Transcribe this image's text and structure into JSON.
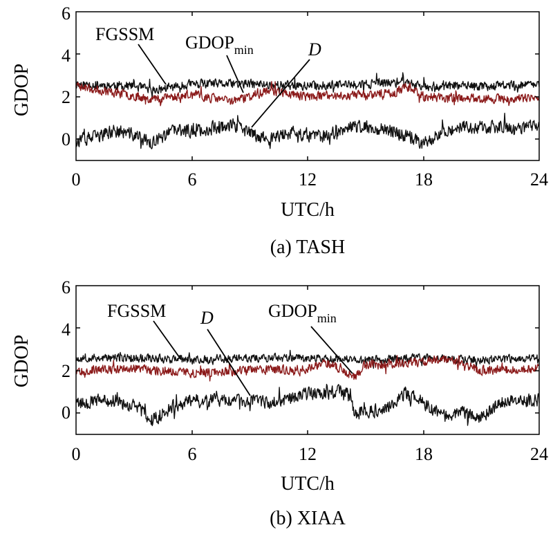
{
  "chart_data": [
    {
      "type": "line",
      "caption": "(a) TASH",
      "xlabel": "UTC/h",
      "ylabel": "GDOP",
      "xlim": [
        0,
        24
      ],
      "ylim": [
        -1,
        6
      ],
      "xticks": [
        "0",
        "6",
        "12",
        "18",
        "24"
      ],
      "yticks": [
        "0",
        "2",
        "4",
        "6"
      ],
      "annotations": {
        "fgssm": "FGSSM",
        "gdop_main": "GDOP",
        "gdop_sub": "min",
        "d": "D"
      },
      "series": [
        {
          "name": "FGSSM",
          "color": "#111111",
          "mean": [
            [
              0,
              2.6
            ],
            [
              3,
              2.5
            ],
            [
              4,
              2.3
            ],
            [
              6,
              2.6
            ],
            [
              9,
              2.6
            ],
            [
              12,
              2.5
            ],
            [
              15,
              2.6
            ],
            [
              17,
              2.7
            ],
            [
              18,
              2.5
            ],
            [
              21,
              2.5
            ],
            [
              24,
              2.6
            ]
          ],
          "noise": 0.22,
          "seed": 11
        },
        {
          "name": "GDOP_min",
          "color": "#8b1a1a",
          "mean": [
            [
              0,
              2.5
            ],
            [
              2,
              2.2
            ],
            [
              4,
              1.9
            ],
            [
              6,
              2.1
            ],
            [
              8,
              1.8
            ],
            [
              9,
              2.0
            ],
            [
              10,
              2.3
            ],
            [
              12,
              2.0
            ],
            [
              15,
              2.1
            ],
            [
              16.5,
              2.2
            ],
            [
              17.3,
              2.5
            ],
            [
              18,
              2.0
            ],
            [
              21,
              1.9
            ],
            [
              24,
              1.9
            ]
          ],
          "noise": 0.22,
          "seed": 23
        },
        {
          "name": "D",
          "color": "#111111",
          "mean": [
            [
              0,
              -0.1
            ],
            [
              1,
              0.1
            ],
            [
              2,
              0.4
            ],
            [
              3,
              0.2
            ],
            [
              4,
              -0.2
            ],
            [
              5,
              0.4
            ],
            [
              6,
              0.4
            ],
            [
              7,
              0.5
            ],
            [
              8,
              0.7
            ],
            [
              9,
              0.3
            ],
            [
              10,
              0.0
            ],
            [
              11,
              0.3
            ],
            [
              12,
              0.2
            ],
            [
              13,
              0.1
            ],
            [
              14,
              0.6
            ],
            [
              16,
              0.5
            ],
            [
              17,
              0.2
            ],
            [
              18,
              -0.2
            ],
            [
              19,
              0.4
            ],
            [
              20,
              0.6
            ],
            [
              22,
              0.5
            ],
            [
              24,
              0.6
            ]
          ],
          "noise": 0.32,
          "seed": 37
        }
      ]
    },
    {
      "type": "line",
      "caption": "(b) XIAA",
      "xlabel": "UTC/h",
      "ylabel": "GDOP",
      "xlim": [
        0,
        24
      ],
      "ylim": [
        -1,
        6
      ],
      "xticks": [
        "0",
        "6",
        "12",
        "18",
        "24"
      ],
      "yticks": [
        "0",
        "2",
        "4",
        "6"
      ],
      "annotations": {
        "fgssm": "FGSSM",
        "gdop_main": "GDOP",
        "gdop_sub": "min",
        "d": "D"
      },
      "series": [
        {
          "name": "FGSSM",
          "color": "#111111",
          "mean": [
            [
              0,
              2.6
            ],
            [
              4,
              2.6
            ],
            [
              6,
              2.5
            ],
            [
              9,
              2.6
            ],
            [
              12,
              2.6
            ],
            [
              15,
              2.5
            ],
            [
              18,
              2.6
            ],
            [
              21,
              2.5
            ],
            [
              24,
              2.6
            ]
          ],
          "noise": 0.2,
          "seed": 53
        },
        {
          "name": "GDOP_min",
          "color": "#8b1a1a",
          "mean": [
            [
              0,
              2.0
            ],
            [
              3,
              2.1
            ],
            [
              6,
              1.9
            ],
            [
              9,
              2.0
            ],
            [
              12,
              2.1
            ],
            [
              13,
              2.4
            ],
            [
              14.5,
              1.7
            ],
            [
              15,
              2.3
            ],
            [
              18,
              2.4
            ],
            [
              19,
              2.6
            ],
            [
              21,
              2.0
            ],
            [
              24,
              2.1
            ]
          ],
          "noise": 0.22,
          "seed": 67
        },
        {
          "name": "D",
          "color": "#111111",
          "mean": [
            [
              0,
              0.5
            ],
            [
              2,
              0.6
            ],
            [
              3,
              0.3
            ],
            [
              4,
              -0.3
            ],
            [
              5,
              0.3
            ],
            [
              6,
              0.6
            ],
            [
              8,
              0.6
            ],
            [
              10,
              0.5
            ],
            [
              12,
              0.9
            ],
            [
              14,
              1.0
            ],
            [
              14.5,
              0.0
            ],
            [
              16,
              0.2
            ],
            [
              17,
              0.9
            ],
            [
              18,
              0.5
            ],
            [
              19,
              -0.2
            ],
            [
              20,
              0.1
            ],
            [
              21,
              -0.2
            ],
            [
              22,
              0.5
            ],
            [
              24,
              0.6
            ]
          ],
          "noise": 0.32,
          "seed": 79
        }
      ]
    }
  ]
}
